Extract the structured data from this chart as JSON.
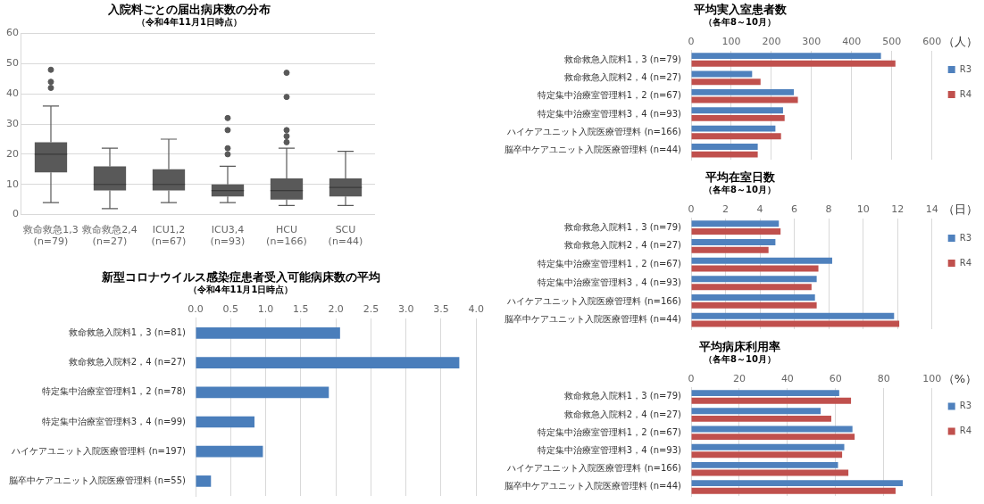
{
  "chart_data": [
    {
      "type": "box",
      "title": "入院料ごとの届出病床数の分布",
      "subtitle": "（令和4年11月1日時点）",
      "categories": [
        "救命救急1,3\n(n=79)",
        "救命救急2,4\n(n=27)",
        "ICU1,2\n(n=67)",
        "ICU3,4\n(n=93)",
        "HCU\n(n=166)",
        "SCU\n(n=44)"
      ],
      "color": "#595959",
      "ylim": [
        0,
        60
      ],
      "yticks": [
        0,
        10,
        20,
        30,
        40,
        50,
        60
      ],
      "grid": "y",
      "legend": false,
      "boxes": [
        {
          "low": 4,
          "q1": 14,
          "median": 20,
          "q3": 24,
          "high": 36,
          "mean": 20,
          "outliers": [
            42,
            44,
            48
          ]
        },
        {
          "low": 2,
          "q1": 8,
          "median": 10,
          "q3": 16,
          "high": 22,
          "mean": 12
        },
        {
          "low": 4,
          "q1": 8,
          "median": 10,
          "q3": 15,
          "high": 25,
          "mean": 11.5
        },
        {
          "low": 4,
          "q1": 6,
          "median": 8,
          "q3": 10,
          "high": 16,
          "mean": 8.5,
          "outliers": [
            20,
            22,
            28,
            32
          ]
        },
        {
          "low": 3,
          "q1": 5,
          "median": 8,
          "q3": 12,
          "high": 22,
          "mean": 9.5,
          "outliers": [
            24,
            26,
            28,
            39,
            47
          ]
        },
        {
          "low": 3,
          "q1": 6,
          "median": 9,
          "q3": 12,
          "high": 21,
          "mean": 9.5
        }
      ]
    },
    {
      "type": "bar",
      "orientation": "horizontal",
      "title": "平均実入室患者数",
      "subtitle": "（各年8～10月）",
      "xlabel": "（人）",
      "categories": [
        "救命救急入院料1，3 (n=79)",
        "救命救急入院料2，4 (n=27)",
        "特定集中治療室管理料1，2 (n=67)",
        "特定集中治療室管理料3，4 (n=93)",
        "ハイケアユニット入院医療管理料 (n=166)",
        "脳卒中ケアユニット入院医療管理料 (n=44)"
      ],
      "xlim": [
        0,
        600
      ],
      "xticks": [
        0,
        100,
        200,
        300,
        400,
        500,
        600
      ],
      "grid": "x",
      "legend": "right",
      "series": [
        {
          "name": "R3",
          "color": "#4f81bd",
          "values": [
            473,
            152,
            256,
            229,
            210,
            166
          ]
        },
        {
          "name": "R4",
          "color": "#c0504d",
          "values": [
            509,
            173,
            266,
            233,
            224,
            166
          ]
        }
      ]
    },
    {
      "type": "bar",
      "orientation": "horizontal",
      "title": "平均在室日数",
      "subtitle": "（各年8～10月）",
      "xlabel": "（日）",
      "categories": [
        "救命救急入院料1，3 (n=79)",
        "救命救急入院料2，4 (n=27)",
        "特定集中治療室管理料1，2 (n=67)",
        "特定集中治療室管理料3，4 (n=93)",
        "ハイケアユニット入院医療管理料 (n=166)",
        "脳卒中ケアユニット入院医療管理料 (n=44)"
      ],
      "xlim": [
        0,
        14
      ],
      "xticks": [
        0,
        2,
        4,
        6,
        8,
        10,
        12,
        14
      ],
      "grid": "x",
      "legend": "right",
      "series": [
        {
          "name": "R3",
          "color": "#4f81bd",
          "values": [
            5.1,
            4.9,
            8.2,
            7.3,
            7.2,
            11.8
          ]
        },
        {
          "name": "R4",
          "color": "#c0504d",
          "values": [
            5.2,
            4.5,
            7.4,
            7.0,
            7.3,
            12.1
          ]
        }
      ]
    },
    {
      "type": "bar",
      "orientation": "horizontal",
      "title": "新型コロナウイルス感染症患者受入可能病床数の平均",
      "subtitle": "（令和4年11月1日時点）",
      "categories": [
        "救命救急入院料1，3 (n=81)",
        "救命救急入院料2，4 (n=27)",
        "特定集中治療室管理料1，2 (n=78)",
        "特定集中治療室管理料3，4 (n=99)",
        "ハイケアユニット入院医療管理料 (n=197)",
        "脳卒中ケアユニット入院医療管理料 (n=55)"
      ],
      "xlim": [
        0,
        4
      ],
      "xticks": [
        {
          "value": 0,
          "label": "0.0"
        },
        0.5,
        {
          "value": 1,
          "label": "1.0"
        },
        1.5,
        {
          "value": 2,
          "label": "2.0"
        },
        2.5,
        {
          "value": 3,
          "label": "3.0"
        },
        3.5,
        {
          "value": 4,
          "label": "4.0"
        }
      ],
      "grid": "x",
      "legend": false,
      "series": [
        {
          "color": "#4a7ebb",
          "values": [
            2.06,
            3.76,
            1.9,
            0.84,
            0.96,
            0.22
          ]
        }
      ]
    },
    {
      "type": "bar",
      "orientation": "horizontal",
      "title": "平均病床利用率",
      "subtitle": "（各年8～10月）",
      "xlabel": "（%）",
      "categories": [
        "救命救急入院料1，3 (n=79)",
        "救命救急入院料2，4 (n=27)",
        "特定集中治療室管理料1，2 (n=67)",
        "特定集中治療室管理料3，4 (n=93)",
        "ハイケアユニット入院医療管理料 (n=166)",
        "脳卒中ケアユニット入院医療管理料 (n=44)"
      ],
      "xlim": [
        0,
        100
      ],
      "xticks": [
        0,
        20,
        40,
        60,
        80,
        100
      ],
      "grid": "x",
      "legend": "right",
      "series": [
        {
          "name": "R3",
          "color": "#4f81bd",
          "values": [
            61.5,
            53.8,
            67,
            63.6,
            61,
            87.9
          ]
        },
        {
          "name": "R4",
          "color": "#c0504d",
          "values": [
            66.4,
            58.2,
            67.9,
            62.7,
            65.3,
            84.9
          ]
        }
      ]
    }
  ]
}
